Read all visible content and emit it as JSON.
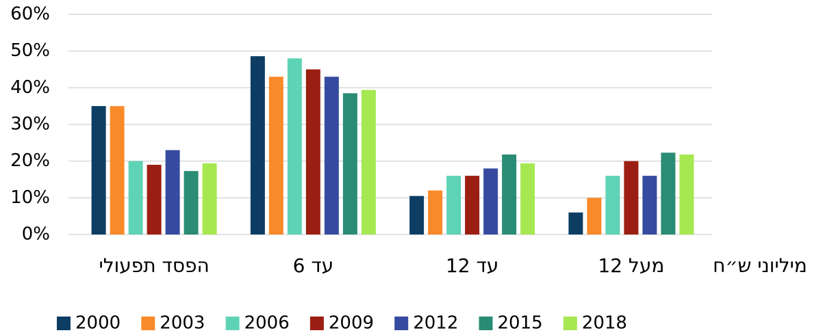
{
  "chart_data": {
    "type": "bar",
    "categories": [
      "הפסד תפעולי",
      "עד 6",
      "עד 12",
      "מעל 12"
    ],
    "x_label": "מיליוני ש״ח",
    "series": [
      {
        "name": "2000",
        "color": "#0d3d63",
        "values": [
          35,
          48.6,
          10.5,
          6
        ]
      },
      {
        "name": "2003",
        "color": "#f98a2a",
        "values": [
          35,
          43,
          12,
          10
        ]
      },
      {
        "name": "2006",
        "color": "#5fd3b5",
        "values": [
          20,
          48,
          16,
          16
        ]
      },
      {
        "name": "2009",
        "color": "#9b1e12",
        "values": [
          19,
          45,
          16,
          20
        ]
      },
      {
        "name": "2012",
        "color": "#364ba0",
        "values": [
          23,
          43,
          18,
          16
        ]
      },
      {
        "name": "2015",
        "color": "#2a8c74",
        "values": [
          17.3,
          38.5,
          21.8,
          22.3
        ]
      },
      {
        "name": "2018",
        "color": "#a6e852",
        "values": [
          19.4,
          39.4,
          19.4,
          21.8
        ]
      }
    ],
    "ylim": [
      0,
      60
    ],
    "yticks": [
      {
        "value": 0,
        "label": "0%"
      },
      {
        "value": 10,
        "label": "10%"
      },
      {
        "value": 20,
        "label": "20%"
      },
      {
        "value": 30,
        "label": "30%"
      },
      {
        "value": 40,
        "label": "40%"
      },
      {
        "value": 50,
        "label": "50%"
      },
      {
        "value": 60,
        "label": "60%"
      }
    ],
    "grid": true,
    "legend": "bottom"
  }
}
